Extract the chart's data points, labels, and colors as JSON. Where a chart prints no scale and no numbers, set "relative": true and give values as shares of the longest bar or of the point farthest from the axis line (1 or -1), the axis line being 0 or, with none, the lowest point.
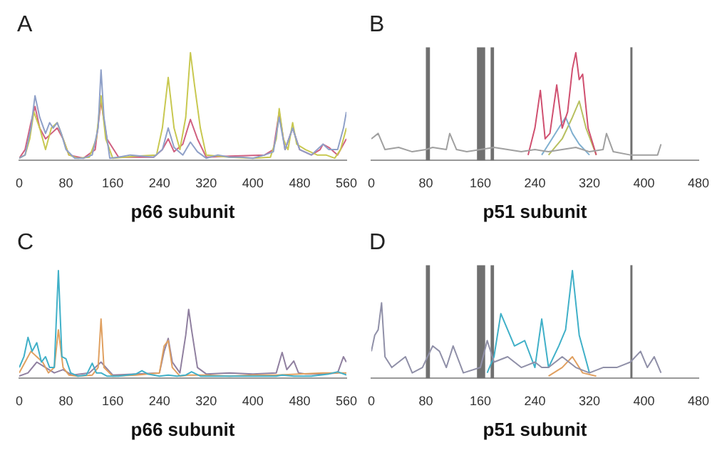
{
  "chart_data": [
    {
      "type": "line",
      "title": "A",
      "xlabel": "p66 subunit",
      "relative": true,
      "xlim": [
        0,
        560
      ],
      "xticks": [
        0,
        80,
        160,
        240,
        320,
        400,
        480,
        560
      ],
      "tick_labels": "x",
      "grid": false,
      "legend": false,
      "marker": "none",
      "series": [
        {
          "color": "#8fa0c8",
          "x": [
            0,
            10,
            20,
            27,
            35,
            45,
            52,
            58,
            65,
            72,
            80,
            95,
            110,
            125,
            135,
            140,
            145,
            155,
            170,
            190,
            210,
            230,
            245,
            255,
            265,
            280,
            293,
            305,
            320,
            340,
            360,
            380,
            400,
            420,
            435,
            445,
            455,
            468,
            480,
            500,
            520,
            530,
            545,
            555,
            560
          ],
          "values": [
            0.02,
            0.05,
            0.3,
            0.6,
            0.4,
            0.25,
            0.35,
            0.3,
            0.35,
            0.25,
            0.1,
            0.02,
            0.02,
            0.05,
            0.3,
            0.84,
            0.4,
            0.02,
            0.03,
            0.05,
            0.04,
            0.03,
            0.1,
            0.3,
            0.12,
            0.05,
            0.17,
            0.08,
            0.02,
            0.05,
            0.03,
            0.03,
            0.02,
            0.05,
            0.08,
            0.4,
            0.1,
            0.3,
            0.1,
            0.05,
            0.15,
            0.1,
            0.1,
            0.3,
            0.45
          ]
        },
        {
          "color": "#c8c850",
          "x": [
            0,
            10,
            18,
            25,
            35,
            45,
            55,
            65,
            75,
            85,
            100,
            120,
            132,
            140,
            148,
            160,
            200,
            235,
            245,
            255,
            265,
            275,
            285,
            293,
            300,
            310,
            320,
            360,
            400,
            430,
            440,
            445,
            452,
            460,
            468,
            475,
            490,
            510,
            525,
            540,
            550,
            560
          ],
          "values": [
            0.02,
            0.05,
            0.2,
            0.45,
            0.3,
            0.1,
            0.3,
            0.35,
            0.2,
            0.05,
            0.02,
            0.03,
            0.2,
            0.6,
            0.2,
            0.02,
            0.04,
            0.05,
            0.3,
            0.77,
            0.3,
            0.1,
            0.4,
            1.0,
            0.7,
            0.3,
            0.05,
            0.03,
            0.02,
            0.03,
            0.2,
            0.48,
            0.2,
            0.1,
            0.35,
            0.15,
            0.1,
            0.05,
            0.05,
            0.02,
            0.1,
            0.3
          ]
        },
        {
          "color": "#d06080",
          "x": [
            0,
            10,
            20,
            27,
            35,
            45,
            55,
            65,
            75,
            85,
            110,
            130,
            140,
            150,
            170,
            230,
            245,
            255,
            265,
            280,
            293,
            305,
            320,
            360,
            420,
            435,
            445,
            455,
            468,
            480,
            500,
            515,
            520,
            530,
            545,
            560
          ],
          "values": [
            0.02,
            0.1,
            0.35,
            0.5,
            0.3,
            0.2,
            0.25,
            0.3,
            0.2,
            0.05,
            0.02,
            0.1,
            0.55,
            0.2,
            0.03,
            0.03,
            0.1,
            0.2,
            0.08,
            0.15,
            0.38,
            0.2,
            0.03,
            0.04,
            0.05,
            0.1,
            0.45,
            0.1,
            0.3,
            0.1,
            0.05,
            0.1,
            0.15,
            0.12,
            0.05,
            0.2
          ]
        }
      ]
    },
    {
      "type": "line",
      "title": "B",
      "xlabel": "p51 subunit",
      "relative": true,
      "xlim": [
        0,
        480
      ],
      "xticks": [
        0,
        80,
        160,
        240,
        320,
        400,
        480
      ],
      "tick_labels": "x",
      "grid": false,
      "legend": false,
      "marker": "none",
      "bands": [
        {
          "axis": "x",
          "from": 80,
          "to": 86,
          "color": "#707070"
        },
        {
          "axis": "x",
          "from": 155,
          "to": 167,
          "color": "#707070"
        },
        {
          "axis": "x",
          "from": 175,
          "to": 180,
          "color": "#707070"
        },
        {
          "axis": "x",
          "from": 380,
          "to": 382,
          "color": "#707070"
        }
      ],
      "series": [
        {
          "color": "#a0a0a0",
          "x": [
            0,
            10,
            20,
            40,
            60,
            80,
            90,
            110,
            115,
            125,
            140,
            160,
            180,
            200,
            220,
            240,
            260,
            280,
            300,
            320,
            340,
            345,
            355,
            380,
            400,
            420,
            425
          ],
          "values": [
            0.2,
            0.25,
            0.1,
            0.12,
            0.08,
            0.1,
            0.12,
            0.1,
            0.25,
            0.1,
            0.08,
            0.1,
            0.12,
            0.1,
            0.08,
            0.1,
            0.08,
            0.1,
            0.12,
            0.08,
            0.1,
            0.25,
            0.08,
            0.05,
            0.05,
            0.05,
            0.15
          ]
        },
        {
          "color": "#d05070",
          "x": [
            230,
            240,
            248,
            255,
            262,
            272,
            280,
            288,
            295,
            300,
            305,
            310,
            318,
            330
          ],
          "values": [
            0.05,
            0.3,
            0.65,
            0.2,
            0.25,
            0.7,
            0.3,
            0.45,
            0.85,
            1.0,
            0.75,
            0.8,
            0.3,
            0.05
          ]
        },
        {
          "color": "#80b0d0",
          "x": [
            250,
            265,
            275,
            285,
            295,
            305,
            320
          ],
          "values": [
            0.05,
            0.2,
            0.3,
            0.4,
            0.25,
            0.15,
            0.05
          ]
        },
        {
          "color": "#b8c060",
          "x": [
            260,
            280,
            295,
            305,
            315,
            330
          ],
          "values": [
            0.05,
            0.2,
            0.4,
            0.55,
            0.3,
            0.05
          ]
        }
      ]
    },
    {
      "type": "line",
      "title": "C",
      "xlabel": "p66 subunit",
      "relative": true,
      "xlim": [
        0,
        560
      ],
      "xticks": [
        0,
        80,
        160,
        240,
        320,
        400,
        480,
        560
      ],
      "tick_labels": "x",
      "grid": false,
      "legend": false,
      "marker": "none",
      "series": [
        {
          "color": "#40b0c8",
          "x": [
            0,
            8,
            15,
            22,
            30,
            38,
            45,
            52,
            60,
            67,
            73,
            80,
            88,
            100,
            115,
            125,
            132,
            140,
            150,
            170,
            200,
            210,
            220,
            240,
            255,
            270,
            285,
            295,
            310,
            360,
            440,
            450,
            470,
            500,
            530,
            545,
            560
          ],
          "values": [
            0.1,
            0.2,
            0.38,
            0.25,
            0.33,
            0.15,
            0.2,
            0.1,
            0.1,
            1.0,
            0.2,
            0.18,
            0.05,
            0.02,
            0.03,
            0.14,
            0.05,
            0.05,
            0.02,
            0.02,
            0.04,
            0.07,
            0.04,
            0.02,
            0.03,
            0.02,
            0.03,
            0.06,
            0.02,
            0.02,
            0.02,
            0.03,
            0.02,
            0.02,
            0.04,
            0.06,
            0.03
          ]
        },
        {
          "color": "#e0a060",
          "x": [
            0,
            10,
            20,
            30,
            40,
            50,
            60,
            67,
            75,
            85,
            100,
            125,
            135,
            140,
            145,
            160,
            200,
            240,
            248,
            255,
            262,
            275,
            290,
            320,
            360,
            400,
            440,
            480,
            520,
            560
          ],
          "values": [
            0.05,
            0.15,
            0.25,
            0.2,
            0.15,
            0.05,
            0.1,
            0.45,
            0.1,
            0.03,
            0.02,
            0.03,
            0.1,
            0.55,
            0.1,
            0.02,
            0.03,
            0.05,
            0.3,
            0.35,
            0.1,
            0.02,
            0.03,
            0.03,
            0.02,
            0.03,
            0.03,
            0.04,
            0.05,
            0.05
          ]
        },
        {
          "color": "#9080a0",
          "x": [
            0,
            15,
            30,
            45,
            60,
            75,
            90,
            120,
            140,
            160,
            200,
            240,
            248,
            255,
            262,
            275,
            285,
            290,
            295,
            305,
            320,
            360,
            400,
            440,
            450,
            458,
            470,
            478,
            490,
            520,
            545,
            555,
            560
          ],
          "values": [
            0.02,
            0.05,
            0.15,
            0.1,
            0.05,
            0.08,
            0.03,
            0.05,
            0.15,
            0.03,
            0.04,
            0.05,
            0.25,
            0.37,
            0.15,
            0.05,
            0.4,
            0.64,
            0.45,
            0.1,
            0.04,
            0.05,
            0.04,
            0.05,
            0.24,
            0.08,
            0.16,
            0.05,
            0.04,
            0.04,
            0.05,
            0.2,
            0.15
          ]
        }
      ]
    },
    {
      "type": "line",
      "title": "D",
      "xlabel": "p51 subunit",
      "relative": true,
      "xlim": [
        0,
        480
      ],
      "xticks": [
        0,
        80,
        160,
        240,
        320,
        400,
        480
      ],
      "tick_labels": "x",
      "grid": false,
      "legend": false,
      "marker": "none",
      "bands": [
        {
          "axis": "x",
          "from": 80,
          "to": 86,
          "color": "#707070"
        },
        {
          "axis": "x",
          "from": 155,
          "to": 167,
          "color": "#707070"
        },
        {
          "axis": "x",
          "from": 175,
          "to": 180,
          "color": "#707070"
        },
        {
          "axis": "x",
          "from": 380,
          "to": 382,
          "color": "#707070"
        }
      ],
      "series": [
        {
          "color": "#9090a8",
          "x": [
            0,
            5,
            10,
            15,
            20,
            30,
            50,
            60,
            75,
            90,
            100,
            110,
            120,
            135,
            160,
            170,
            180,
            200,
            220,
            240,
            250,
            260,
            280,
            300,
            320,
            340,
            360,
            380,
            395,
            405,
            415,
            425
          ],
          "values": [
            0.25,
            0.4,
            0.45,
            0.7,
            0.2,
            0.1,
            0.2,
            0.05,
            0.1,
            0.3,
            0.25,
            0.1,
            0.3,
            0.05,
            0.1,
            0.35,
            0.15,
            0.2,
            0.1,
            0.15,
            0.1,
            0.1,
            0.2,
            0.1,
            0.05,
            0.1,
            0.1,
            0.15,
            0.25,
            0.1,
            0.2,
            0.05
          ]
        },
        {
          "color": "#40b0c8",
          "x": [
            170,
            180,
            190,
            200,
            210,
            225,
            240,
            250,
            260,
            275,
            285,
            295,
            305,
            320
          ],
          "values": [
            0.05,
            0.2,
            0.6,
            0.45,
            0.3,
            0.35,
            0.1,
            0.55,
            0.1,
            0.3,
            0.45,
            1.0,
            0.4,
            0.05
          ]
        },
        {
          "color": "#e0a060",
          "x": [
            260,
            280,
            295,
            300,
            310,
            330
          ],
          "values": [
            0.02,
            0.1,
            0.2,
            0.15,
            0.05,
            0.02
          ]
        }
      ]
    }
  ]
}
